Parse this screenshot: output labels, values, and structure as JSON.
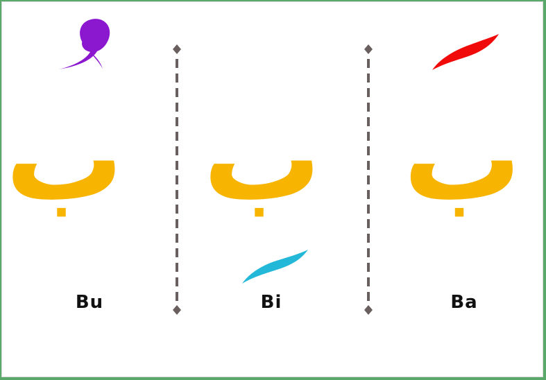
{
  "lesson": {
    "columns": [
      {
        "letter": "ب",
        "label": "Bu",
        "vowel_mark_icon": "damma-mark-icon",
        "mark_color": "#8b17cf"
      },
      {
        "letter": "ب",
        "label": "Bi",
        "vowel_mark_icon": "kasra-mark-icon",
        "mark_color": "#24b8d8"
      },
      {
        "letter": "ب",
        "label": "Ba",
        "vowel_mark_icon": "fatha-mark-icon",
        "mark_color": "#f00a0a"
      }
    ],
    "divider_icon": "dashed-divider-icon",
    "letter_color": "#f7b400",
    "label_color": "#111111"
  }
}
